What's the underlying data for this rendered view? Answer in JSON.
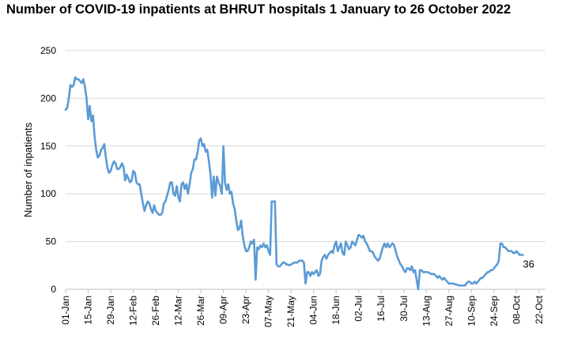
{
  "chart_data": {
    "type": "line",
    "title": "Number of COVID-19 inpatients at BHRUT hospitals 1 January to 26 October 2022",
    "xlabel": "",
    "ylabel": "Number of inpatients",
    "ylim": [
      0,
      250
    ],
    "yticks": [
      0,
      50,
      100,
      150,
      200,
      250
    ],
    "grid": true,
    "x_start": "2022-01-01",
    "x_end": "2022-10-26",
    "xtick_labels": [
      "01-Jan",
      "15-Jan",
      "29-Jan",
      "12-Feb",
      "26-Feb",
      "12-Mar",
      "26-Mar",
      "09-Apr",
      "23-Apr",
      "07-May",
      "21-May",
      "04-Jun",
      "18-Jun",
      "02-Jul",
      "16-Jul",
      "30-Jul",
      "13-Aug",
      "27-Aug",
      "10-Sep",
      "24-Sep",
      "08-Oct",
      "22-Oct"
    ],
    "line_color": "#5B9BD5",
    "end_label": "36",
    "series": [
      {
        "name": "Inpatients",
        "points": [
          [
            0,
            188
          ],
          [
            1,
            190
          ],
          [
            2,
            200
          ],
          [
            3,
            214
          ],
          [
            4,
            212
          ],
          [
            5,
            214
          ],
          [
            6,
            222
          ],
          [
            7,
            220
          ],
          [
            8,
            220
          ],
          [
            9,
            218
          ],
          [
            10,
            216
          ],
          [
            11,
            220
          ],
          [
            12,
            212
          ],
          [
            13,
            200
          ],
          [
            14,
            178
          ],
          [
            15,
            192
          ],
          [
            16,
            176
          ],
          [
            17,
            182
          ],
          [
            18,
            160
          ],
          [
            19,
            146
          ],
          [
            20,
            138
          ],
          [
            21,
            140
          ],
          [
            22,
            146
          ],
          [
            23,
            148
          ],
          [
            24,
            152
          ],
          [
            25,
            138
          ],
          [
            26,
            127
          ],
          [
            27,
            122
          ],
          [
            28,
            124
          ],
          [
            29,
            130
          ],
          [
            30,
            134
          ],
          [
            31,
            132
          ],
          [
            32,
            126
          ],
          [
            33,
            126
          ],
          [
            34,
            128
          ],
          [
            35,
            132
          ],
          [
            36,
            128
          ],
          [
            37,
            114
          ],
          [
            38,
            120
          ],
          [
            39,
            116
          ],
          [
            40,
            112
          ],
          [
            41,
            114
          ],
          [
            42,
            124
          ],
          [
            43,
            122
          ],
          [
            44,
            112
          ],
          [
            45,
            110
          ],
          [
            46,
            110
          ],
          [
            47,
            100
          ],
          [
            48,
            90
          ],
          [
            49,
            82
          ],
          [
            50,
            88
          ],
          [
            51,
            92
          ],
          [
            52,
            90
          ],
          [
            53,
            84
          ],
          [
            54,
            80
          ],
          [
            55,
            88
          ],
          [
            56,
            82
          ],
          [
            57,
            80
          ],
          [
            58,
            78
          ],
          [
            59,
            78
          ],
          [
            60,
            80
          ],
          [
            61,
            90
          ],
          [
            62,
            92
          ],
          [
            63,
            98
          ],
          [
            64,
            104
          ],
          [
            65,
            112
          ],
          [
            66,
            112
          ],
          [
            67,
            100
          ],
          [
            68,
            98
          ],
          [
            69,
            108
          ],
          [
            70,
            97
          ],
          [
            71,
            92
          ],
          [
            72,
            110
          ],
          [
            73,
            112
          ],
          [
            74,
            105
          ],
          [
            75,
            110
          ],
          [
            76,
            100
          ],
          [
            77,
            110
          ],
          [
            78,
            122
          ],
          [
            79,
            126
          ],
          [
            80,
            136
          ],
          [
            81,
            136
          ],
          [
            82,
            144
          ],
          [
            83,
            156
          ],
          [
            84,
            158
          ],
          [
            85,
            150
          ],
          [
            86,
            152
          ],
          [
            87,
            144
          ],
          [
            88,
            146
          ],
          [
            89,
            134
          ],
          [
            90,
            120
          ],
          [
            91,
            96
          ],
          [
            92,
            118
          ],
          [
            93,
            98
          ],
          [
            94,
            118
          ],
          [
            95,
            112
          ],
          [
            96,
            108
          ],
          [
            97,
            100
          ],
          [
            98,
            150
          ],
          [
            99,
            112
          ],
          [
            100,
            104
          ],
          [
            101,
            110
          ],
          [
            102,
            100
          ],
          [
            103,
            102
          ],
          [
            104,
            90
          ],
          [
            105,
            84
          ],
          [
            106,
            72
          ],
          [
            107,
            62
          ],
          [
            108,
            64
          ],
          [
            109,
            72
          ],
          [
            110,
            56
          ],
          [
            111,
            46
          ],
          [
            112,
            40
          ],
          [
            113,
            40
          ],
          [
            114,
            44
          ],
          [
            115,
            50
          ],
          [
            116,
            48
          ],
          [
            117,
            52
          ],
          [
            118,
            10
          ],
          [
            119,
            44
          ],
          [
            120,
            42
          ],
          [
            121,
            46
          ],
          [
            122,
            44
          ],
          [
            123,
            48
          ],
          [
            124,
            44
          ],
          [
            125,
            46
          ],
          [
            126,
            40
          ],
          [
            127,
            36
          ],
          [
            128,
            92
          ],
          [
            129,
            92
          ],
          [
            130,
            92
          ],
          [
            131,
            26
          ],
          [
            132,
            24
          ],
          [
            133,
            24
          ],
          [
            134,
            26
          ],
          [
            135,
            28
          ],
          [
            136,
            28
          ],
          [
            137,
            26
          ],
          [
            138,
            26
          ],
          [
            139,
            25
          ],
          [
            140,
            26
          ],
          [
            141,
            27
          ],
          [
            142,
            28
          ],
          [
            143,
            28
          ],
          [
            144,
            28
          ],
          [
            145,
            30
          ],
          [
            146,
            30
          ],
          [
            147,
            30
          ],
          [
            148,
            28
          ],
          [
            149,
            6
          ],
          [
            150,
            18
          ],
          [
            151,
            18
          ],
          [
            152,
            14
          ],
          [
            153,
            18
          ],
          [
            154,
            16
          ],
          [
            155,
            18
          ],
          [
            156,
            20
          ],
          [
            157,
            14
          ],
          [
            158,
            16
          ],
          [
            159,
            30
          ],
          [
            160,
            34
          ],
          [
            161,
            36
          ],
          [
            162,
            32
          ],
          [
            163,
            36
          ],
          [
            164,
            38
          ],
          [
            165,
            40
          ],
          [
            166,
            38
          ],
          [
            167,
            46
          ],
          [
            168,
            50
          ],
          [
            169,
            40
          ],
          [
            170,
            44
          ],
          [
            171,
            48
          ],
          [
            172,
            38
          ],
          [
            173,
            36
          ],
          [
            174,
            50
          ],
          [
            175,
            46
          ],
          [
            176,
            42
          ],
          [
            177,
            44
          ],
          [
            178,
            50
          ],
          [
            179,
            48
          ],
          [
            180,
            46
          ],
          [
            181,
            52
          ],
          [
            182,
            57
          ],
          [
            183,
            56
          ],
          [
            184,
            54
          ],
          [
            185,
            56
          ],
          [
            186,
            50
          ],
          [
            187,
            48
          ],
          [
            188,
            44
          ],
          [
            189,
            40
          ],
          [
            190,
            40
          ],
          [
            191,
            38
          ],
          [
            192,
            34
          ],
          [
            193,
            32
          ],
          [
            194,
            30
          ],
          [
            195,
            32
          ],
          [
            196,
            38
          ],
          [
            197,
            44
          ],
          [
            198,
            48
          ],
          [
            199,
            44
          ],
          [
            200,
            48
          ],
          [
            201,
            44
          ],
          [
            202,
            46
          ],
          [
            203,
            48
          ],
          [
            204,
            46
          ],
          [
            205,
            40
          ],
          [
            206,
            34
          ],
          [
            207,
            30
          ],
          [
            208,
            26
          ],
          [
            209,
            24
          ],
          [
            210,
            20
          ],
          [
            211,
            18
          ],
          [
            212,
            22
          ],
          [
            213,
            22
          ],
          [
            214,
            20
          ],
          [
            215,
            24
          ],
          [
            216,
            18
          ],
          [
            217,
            20
          ],
          [
            218,
            10
          ],
          [
            219,
            0
          ],
          [
            220,
            20
          ],
          [
            221,
            20
          ],
          [
            222,
            18
          ],
          [
            223,
            18
          ],
          [
            224,
            18
          ],
          [
            225,
            18
          ],
          [
            226,
            17
          ],
          [
            227,
            16
          ],
          [
            228,
            16
          ],
          [
            229,
            16
          ],
          [
            230,
            14
          ],
          [
            231,
            12
          ],
          [
            232,
            14
          ],
          [
            233,
            12
          ],
          [
            234,
            10
          ],
          [
            235,
            12
          ],
          [
            236,
            10
          ],
          [
            237,
            8
          ],
          [
            238,
            6
          ],
          [
            239,
            6
          ],
          [
            240,
            6
          ],
          [
            241,
            6
          ],
          [
            242,
            5
          ],
          [
            243,
            5
          ],
          [
            244,
            4
          ],
          [
            245,
            4
          ],
          [
            246,
            4
          ],
          [
            247,
            4
          ],
          [
            248,
            4
          ],
          [
            249,
            6
          ],
          [
            250,
            8
          ],
          [
            251,
            8
          ],
          [
            252,
            6
          ],
          [
            253,
            6
          ],
          [
            254,
            8
          ],
          [
            255,
            6
          ],
          [
            256,
            8
          ],
          [
            257,
            10
          ],
          [
            258,
            12
          ],
          [
            259,
            12
          ],
          [
            260,
            14
          ],
          [
            261,
            16
          ],
          [
            262,
            18
          ],
          [
            263,
            18
          ],
          [
            264,
            20
          ],
          [
            265,
            20
          ],
          [
            266,
            22
          ],
          [
            267,
            24
          ],
          [
            268,
            26
          ],
          [
            269,
            30
          ],
          [
            270,
            48
          ],
          [
            271,
            48
          ],
          [
            272,
            44
          ],
          [
            273,
            44
          ],
          [
            274,
            42
          ],
          [
            275,
            40
          ],
          [
            276,
            40
          ],
          [
            277,
            40
          ],
          [
            278,
            38
          ],
          [
            279,
            38
          ],
          [
            280,
            40
          ],
          [
            281,
            38
          ],
          [
            282,
            36
          ],
          [
            283,
            36
          ],
          [
            284,
            36
          ]
        ]
      }
    ]
  }
}
